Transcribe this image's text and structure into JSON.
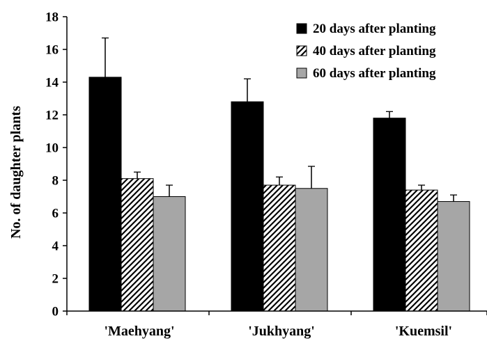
{
  "chart_data": {
    "type": "bar",
    "ylabel": "No. of daughter plants",
    "xlabel": "",
    "ylim": [
      0,
      18
    ],
    "yticks": [
      0,
      2,
      4,
      6,
      8,
      10,
      12,
      14,
      16,
      18
    ],
    "grid": false,
    "legend_position": "top-right",
    "categories": [
      "'Maehyang'",
      "'Jukhyang'",
      "'Kuemsil'"
    ],
    "series": [
      {
        "name": "20 days after planting",
        "fill": "solid-black",
        "color": "#000000",
        "values": [
          14.3,
          12.8,
          11.8
        ],
        "errors": [
          2.4,
          1.4,
          0.4
        ]
      },
      {
        "name": "40 days after planting",
        "fill": "diagonal-hatch",
        "color": "#000000",
        "values": [
          8.1,
          7.7,
          7.4
        ],
        "errors": [
          0.4,
          0.5,
          0.3
        ]
      },
      {
        "name": "60 days after planting",
        "fill": "solid-gray",
        "color": "#a6a6a6",
        "values": [
          7.0,
          7.5,
          6.7
        ],
        "errors": [
          0.7,
          1.35,
          0.4
        ]
      }
    ]
  }
}
